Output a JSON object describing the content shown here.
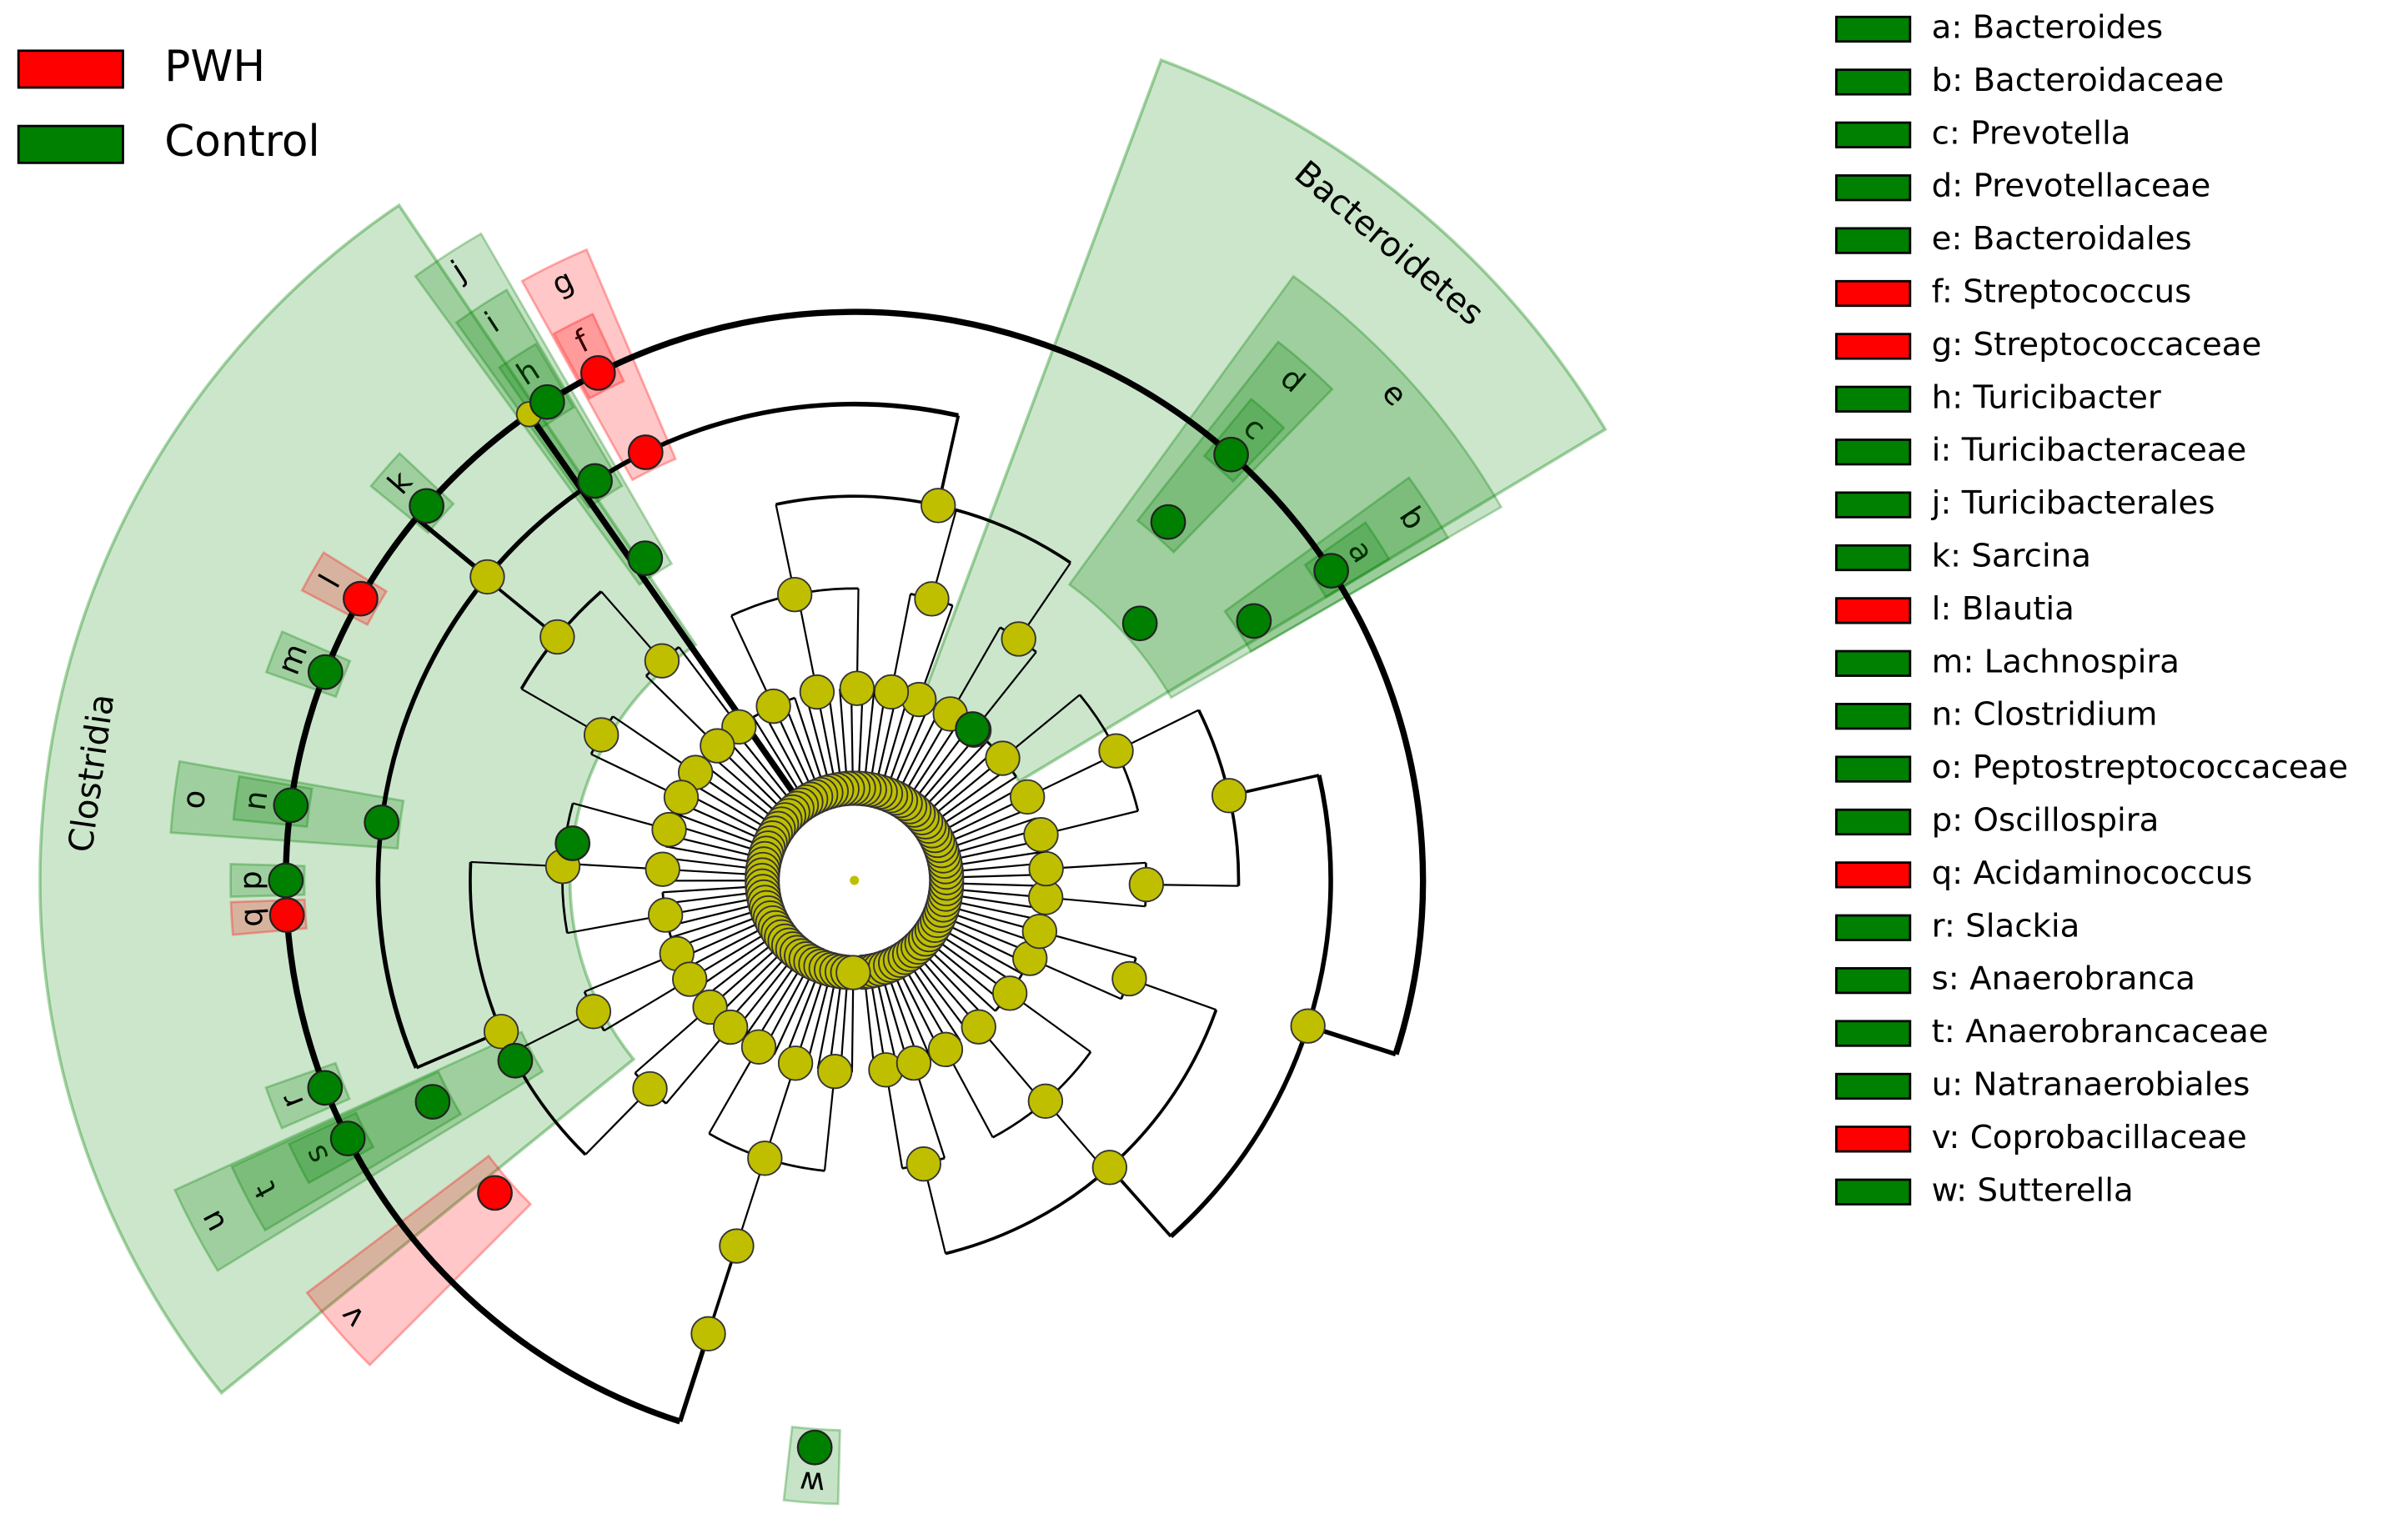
{
  "groups": [
    {
      "name": "PWH",
      "color": "#ff0000"
    },
    {
      "name": "Control",
      "color": "#008000"
    }
  ],
  "clades": [
    {
      "name": "Bacteroidetes",
      "group": 1
    },
    {
      "name": "Clostridia",
      "group": 1
    }
  ],
  "taxa": [
    {
      "letter": "a",
      "label": "a: Bacteroides",
      "group": 1
    },
    {
      "letter": "b",
      "label": "b: Bacteroidaceae",
      "group": 1
    },
    {
      "letter": "c",
      "label": "c: Prevotella",
      "group": 1
    },
    {
      "letter": "d",
      "label": "d: Prevotellaceae",
      "group": 1
    },
    {
      "letter": "e",
      "label": "e: Bacteroidales",
      "group": 1
    },
    {
      "letter": "f",
      "label": "f: Streptococcus",
      "group": 0
    },
    {
      "letter": "g",
      "label": "g: Streptococcaceae",
      "group": 0
    },
    {
      "letter": "h",
      "label": "h: Turicibacter",
      "group": 1
    },
    {
      "letter": "i",
      "label": "i: Turicibacteraceae",
      "group": 1
    },
    {
      "letter": "j",
      "label": "j: Turicibacterales",
      "group": 1
    },
    {
      "letter": "k",
      "label": "k: Sarcina",
      "group": 1
    },
    {
      "letter": "l",
      "label": "l: Blautia",
      "group": 0
    },
    {
      "letter": "m",
      "label": "m: Lachnospira",
      "group": 1
    },
    {
      "letter": "n",
      "label": "n: Clostridium",
      "group": 1
    },
    {
      "letter": "o",
      "label": "o: Peptostreptococcaceae",
      "group": 1
    },
    {
      "letter": "p",
      "label": "p: Oscillospira",
      "group": 1
    },
    {
      "letter": "q",
      "label": "q: Acidaminococcus",
      "group": 0
    },
    {
      "letter": "r",
      "label": "r: Slackia",
      "group": 1
    },
    {
      "letter": "s",
      "label": "s: Anaerobranca",
      "group": 1
    },
    {
      "letter": "t",
      "label": "t: Anaerobrancaceae",
      "group": 1
    },
    {
      "letter": "u",
      "label": "u: Natranaerobiales",
      "group": 1
    },
    {
      "letter": "v",
      "label": "v: Coprobacillaceae",
      "group": 0
    },
    {
      "letter": "w",
      "label": "w: Sutterella",
      "group": 1
    }
  ]
}
